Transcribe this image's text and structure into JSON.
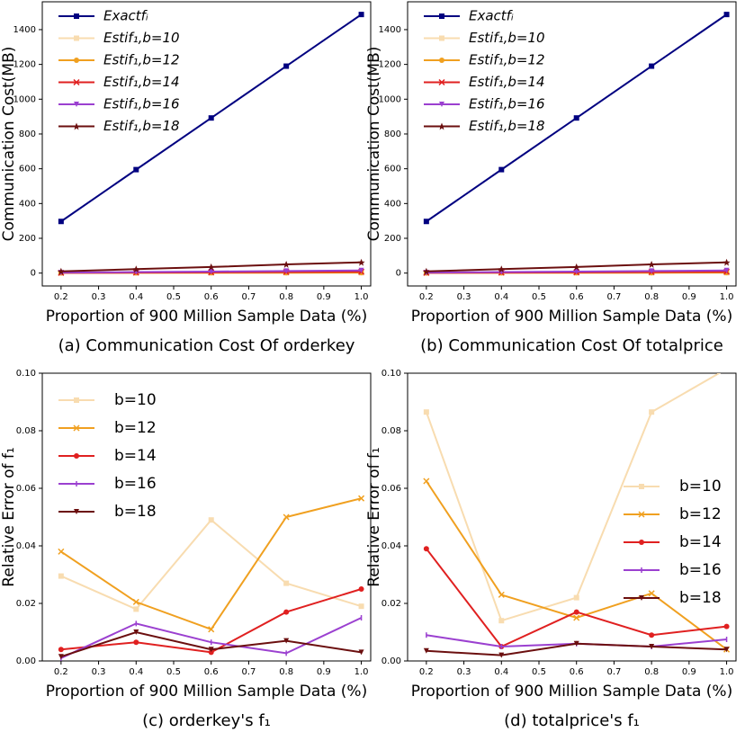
{
  "chart_data": [
    {
      "type": "line",
      "title": "(a) Communication Cost Of orderkey",
      "xlabel": "Proportion of 900 Million Sample Data (%)",
      "ylabel": "Communication Cost(MB)",
      "x": [
        0.2,
        0.4,
        0.6,
        0.8,
        1.0
      ],
      "series": [
        {
          "name": "Exactfᵢ",
          "color": "#000080",
          "marker": "s",
          "values": [
            297,
            595,
            892,
            1190,
            1487
          ]
        },
        {
          "name": "Estif₁,b=10",
          "color": "#f8dcb0",
          "marker": "s",
          "values": [
            0.5,
            0.7,
            1,
            1.2,
            1.5
          ]
        },
        {
          "name": "Estif₁,b=12",
          "color": "#f0a020",
          "marker": "o",
          "values": [
            1,
            1.5,
            2,
            2.5,
            3
          ]
        },
        {
          "name": "Estif₁,b=14",
          "color": "#e02020",
          "marker": "x",
          "values": [
            1.5,
            3,
            4.5,
            6,
            7.5
          ]
        },
        {
          "name": "Estif₁,b=16",
          "color": "#9b40d0",
          "marker": "v",
          "values": [
            3,
            6,
            9,
            12,
            15
          ]
        },
        {
          "name": "Estif₁,b=18",
          "color": "#6b0f0f",
          "marker": "*",
          "values": [
            10,
            23,
            35,
            50,
            62
          ]
        }
      ],
      "xlim": [
        0.15,
        1.025
      ],
      "ylim": [
        -74,
        1560
      ],
      "xticks": [
        0.2,
        0.3,
        0.4,
        0.5,
        0.6,
        0.7,
        0.8,
        0.9,
        {
          "value": 1,
          "label": "1.0"
        }
      ],
      "yticks": [
        0,
        200,
        400,
        600,
        800,
        1000,
        1200,
        1400
      ],
      "legend": "upper left"
    },
    {
      "type": "line",
      "title": "(b) Communication Cost Of totalprice",
      "xlabel": "Proportion of 900 Million Sample Data (%)",
      "ylabel": "Communication Cost(MB)",
      "x": [
        0.2,
        0.4,
        0.6,
        0.8,
        1.0
      ],
      "series": [
        {
          "name": "Exactfᵢ",
          "color": "#000080",
          "marker": "s",
          "values": [
            297,
            595,
            892,
            1190,
            1487
          ]
        },
        {
          "name": "Estif₁,b=10",
          "color": "#f8dcb0",
          "marker": "s",
          "values": [
            0.5,
            0.7,
            1,
            1.2,
            1.5
          ]
        },
        {
          "name": "Estif₁,b=12",
          "color": "#f0a020",
          "marker": "o",
          "values": [
            1,
            1.5,
            2,
            2.5,
            3
          ]
        },
        {
          "name": "Estif₁,b=14",
          "color": "#e02020",
          "marker": "x",
          "values": [
            1.5,
            3,
            4.5,
            6,
            7.5
          ]
        },
        {
          "name": "Estif₁,b=16",
          "color": "#9b40d0",
          "marker": "v",
          "values": [
            3,
            6,
            9,
            12,
            15
          ]
        },
        {
          "name": "Estif₁,b=18",
          "color": "#6b0f0f",
          "marker": "*",
          "values": [
            10,
            23,
            35,
            50,
            62
          ]
        }
      ],
      "xlim": [
        0.15,
        1.025
      ],
      "ylim": [
        -74,
        1560
      ],
      "xticks": [
        0.2,
        0.3,
        0.4,
        0.5,
        0.6,
        0.7,
        0.8,
        0.9,
        {
          "value": 1,
          "label": "1.0"
        }
      ],
      "yticks": [
        0,
        200,
        400,
        600,
        800,
        1000,
        1200,
        1400
      ],
      "legend": "upper left"
    },
    {
      "type": "line",
      "title": "(c) orderkey's f₁",
      "xlabel": "Proportion of 900 Million Sample Data (%)",
      "ylabel": "Relative Error of f₁",
      "x": [
        0.2,
        0.4,
        0.6,
        0.8,
        1.0
      ],
      "series": [
        {
          "name": "b=10",
          "color": "#f8dcb0",
          "marker": "s",
          "values": [
            0.0295,
            0.018,
            0.049,
            0.027,
            0.019
          ]
        },
        {
          "name": "b=12",
          "color": "#f0a020",
          "marker": "x",
          "values": [
            0.038,
            0.0205,
            0.011,
            0.05,
            0.0565
          ]
        },
        {
          "name": "b=14",
          "color": "#e02020",
          "marker": "o",
          "values": [
            0.004,
            0.0065,
            0.003,
            0.017,
            0.025
          ]
        },
        {
          "name": "b=16",
          "color": "#9b40d0",
          "marker": "|",
          "values": [
            0.001,
            0.013,
            0.0065,
            0.0027,
            0.015
          ]
        },
        {
          "name": "b=18",
          "color": "#6b0f0f",
          "marker": "v",
          "values": [
            0.0015,
            0.01,
            0.004,
            0.007,
            0.003
          ]
        }
      ],
      "xlim": [
        0.15,
        1.025
      ],
      "ylim": [
        0,
        0.1
      ],
      "xticks": [
        0.2,
        0.3,
        0.4,
        0.5,
        0.6,
        0.7,
        0.8,
        0.9,
        {
          "value": 1,
          "label": "1.0"
        }
      ],
      "yticks": [
        {
          "value": 0,
          "label": "0.00"
        },
        {
          "value": 0.02,
          "label": "0.02"
        },
        {
          "value": 0.04,
          "label": "0.04"
        },
        {
          "value": 0.06,
          "label": "0.06"
        },
        {
          "value": 0.08,
          "label": "0.08"
        },
        {
          "value": 0.1,
          "label": "0.10"
        }
      ],
      "legend": "upper left"
    },
    {
      "type": "line",
      "title": "(d) totalprice's f₁",
      "xlabel": "Proportion of 900 Million Sample Data (%)",
      "ylabel": "Relative Error of f₁",
      "x": [
        0.2,
        0.4,
        0.6,
        0.8,
        1.0
      ],
      "series": [
        {
          "name": "b=10",
          "color": "#f8dcb0",
          "marker": "s",
          "values": [
            0.0865,
            0.014,
            0.022,
            0.0865,
            0.1015
          ]
        },
        {
          "name": "b=12",
          "color": "#f0a020",
          "marker": "x",
          "values": [
            0.0625,
            0.023,
            0.015,
            0.0235,
            0.004
          ]
        },
        {
          "name": "b=14",
          "color": "#e02020",
          "marker": "o",
          "values": [
            0.039,
            0.005,
            0.017,
            0.009,
            0.012
          ]
        },
        {
          "name": "b=16",
          "color": "#9b40d0",
          "marker": "|",
          "values": [
            0.009,
            0.005,
            0.006,
            0.005,
            0.0075
          ]
        },
        {
          "name": "b=18",
          "color": "#6b0f0f",
          "marker": "v",
          "values": [
            0.0035,
            0.002,
            0.006,
            0.005,
            0.004
          ]
        }
      ],
      "xlim": [
        0.15,
        1.025
      ],
      "ylim": [
        0,
        0.1
      ],
      "xticks": [
        0.2,
        0.3,
        0.4,
        0.5,
        0.6,
        0.7,
        0.8,
        0.9,
        {
          "value": 1,
          "label": "1.0"
        }
      ],
      "yticks": [
        {
          "value": 0,
          "label": "0.00"
        },
        {
          "value": 0.02,
          "label": "0.02"
        },
        {
          "value": 0.04,
          "label": "0.04"
        },
        {
          "value": 0.06,
          "label": "0.06"
        },
        {
          "value": 0.08,
          "label": "0.08"
        },
        {
          "value": 0.1,
          "label": "0.10"
        }
      ],
      "legend": "center right"
    }
  ]
}
